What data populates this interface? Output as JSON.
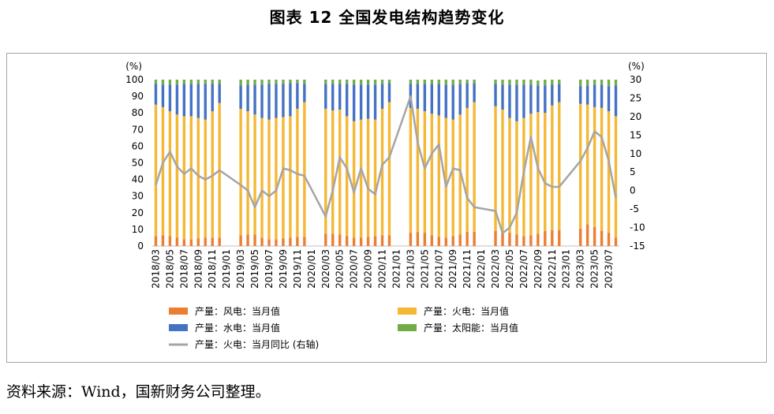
{
  "header": {
    "title": "图表 12 全国发电结构趋势变化"
  },
  "footer": {
    "source": "资料来源：Wind，国新财务公司整理。"
  },
  "chart_data": {
    "type": "bar",
    "stacked": true,
    "left_axis": {
      "unit": "(%)",
      "ylim": [
        0,
        100
      ],
      "ticks": [
        0,
        10,
        20,
        30,
        40,
        50,
        60,
        70,
        80,
        90,
        100
      ]
    },
    "right_axis": {
      "unit": "(%)",
      "ylim": [
        -15,
        30
      ],
      "ticks": [
        -15,
        -10,
        -5,
        0,
        5,
        10,
        15,
        20,
        25,
        30
      ]
    },
    "x_tick_labels": [
      "2018/03",
      "2018/05",
      "2018/07",
      "2018/09",
      "2018/11",
      "2019/01",
      "2019/03",
      "2019/05",
      "2019/07",
      "2019/09",
      "2019/11",
      "2020/01",
      "2020/03",
      "2020/05",
      "2020/07",
      "2020/09",
      "2020/11",
      "2021/01",
      "2021/03",
      "2021/05",
      "2021/07",
      "2021/09",
      "2021/11",
      "2022/01",
      "2022/03",
      "2022/05",
      "2022/07",
      "2022/09",
      "2022/11",
      "2023/01",
      "2023/03",
      "2023/05",
      "2023/07"
    ],
    "months": [
      "2018/03",
      "2018/04",
      "2018/05",
      "2018/06",
      "2018/07",
      "2018/08",
      "2018/09",
      "2018/10",
      "2018/11",
      "2018/12",
      "2019/01",
      "2019/02",
      "2019/03",
      "2019/04",
      "2019/05",
      "2019/06",
      "2019/07",
      "2019/08",
      "2019/09",
      "2019/10",
      "2019/11",
      "2019/12",
      "2020/01",
      "2020/02",
      "2020/03",
      "2020/04",
      "2020/05",
      "2020/06",
      "2020/07",
      "2020/08",
      "2020/09",
      "2020/10",
      "2020/11",
      "2020/12",
      "2021/01",
      "2021/02",
      "2021/03",
      "2021/04",
      "2021/05",
      "2021/06",
      "2021/07",
      "2021/08",
      "2021/09",
      "2021/10",
      "2021/11",
      "2021/12",
      "2022/01",
      "2022/02",
      "2022/03",
      "2022/04",
      "2022/05",
      "2022/06",
      "2022/07",
      "2022/08",
      "2022/09",
      "2022/10",
      "2022/11",
      "2022/12",
      "2023/01",
      "2023/02",
      "2023/03",
      "2023/04",
      "2023/05",
      "2023/06",
      "2023/07",
      "2023/08"
    ],
    "series": [
      {
        "name": "产量：风电：当月值",
        "color": "#ed7d31",
        "type": "bar",
        "values": [
          6,
          6.5,
          6,
          5,
          4,
          4,
          4.5,
          5,
          5,
          5,
          null,
          null,
          6.5,
          7,
          7,
          5,
          4,
          4,
          4.5,
          5,
          5.5,
          5.5,
          null,
          null,
          7.5,
          7.5,
          7,
          6,
          5,
          5,
          5.5,
          6,
          6.5,
          6.5,
          null,
          null,
          8,
          8.5,
          8,
          6.5,
          5.5,
          5,
          6,
          7,
          8.5,
          8.5,
          null,
          null,
          9,
          9,
          8,
          7,
          6,
          6.5,
          7.5,
          9,
          9.5,
          9.5,
          null,
          null,
          10.5,
          13,
          11.5,
          9,
          8,
          5
        ]
      },
      {
        "name": "产量：火电：当月值",
        "color": "#f4b835",
        "type": "bar",
        "values": [
          79,
          77,
          75,
          74,
          74,
          74,
          72.5,
          71,
          76,
          81,
          null,
          null,
          76,
          74,
          72,
          72,
          72,
          73,
          73,
          73,
          77,
          81,
          null,
          null,
          75,
          74,
          75,
          72,
          70,
          71,
          71,
          70,
          76,
          80,
          null,
          null,
          75,
          74,
          73,
          73,
          73,
          72,
          70,
          72,
          74.5,
          78,
          null,
          null,
          75,
          73,
          69,
          68,
          71,
          73,
          73,
          71,
          75,
          77,
          null,
          null,
          75,
          72,
          72,
          74,
          73,
          73
        ]
      },
      {
        "name": "产量：水电：当月值",
        "color": "#4472c4",
        "type": "bar",
        "values": [
          12.5,
          13.5,
          16,
          18,
          19.5,
          19.5,
          20.5,
          21.5,
          16.5,
          11.5,
          null,
          null,
          14,
          16,
          18,
          20,
          21.5,
          20.5,
          20,
          20,
          15.5,
          11,
          null,
          null,
          15,
          16,
          15.5,
          19.5,
          22,
          21,
          20.5,
          21,
          15,
          11.5,
          null,
          null,
          14.5,
          15,
          16.5,
          18,
          19,
          20,
          21,
          18.5,
          15,
          11.5,
          null,
          null,
          13.5,
          15,
          20,
          22,
          20,
          17.5,
          16,
          16.5,
          12.5,
          11,
          null,
          null,
          10.5,
          11.5,
          13.5,
          14,
          15,
          18.5
        ]
      },
      {
        "name": "产量：太阳能：当月值",
        "color": "#70ad47",
        "type": "bar",
        "values": [
          2.5,
          3,
          3,
          3,
          2.5,
          2.5,
          2.5,
          2.5,
          2.5,
          2.5,
          null,
          null,
          3.5,
          3,
          3,
          3,
          2.5,
          2.5,
          2.5,
          2,
          2,
          2.5,
          null,
          null,
          2.5,
          2.5,
          2.5,
          2.5,
          3,
          3,
          3,
          3,
          2.5,
          2,
          null,
          null,
          2.5,
          2.5,
          2.5,
          2.5,
          2.5,
          3,
          3,
          2.5,
          2,
          2,
          null,
          null,
          2.5,
          3,
          3,
          3,
          3,
          3,
          3,
          3.5,
          3,
          2.5,
          null,
          null,
          4,
          3.5,
          3,
          3,
          4,
          3.5
        ]
      },
      {
        "name": "产量：火电：当月同比 (右轴)",
        "color": "#a5a5a5",
        "type": "line",
        "axis": "right",
        "values": [
          1.5,
          7.5,
          10.5,
          6.5,
          4.5,
          6,
          4,
          3,
          4,
          5.5,
          null,
          null,
          1.5,
          0,
          -4.5,
          0,
          -1.5,
          0,
          6,
          5.5,
          4.5,
          4,
          null,
          null,
          -7,
          0,
          9,
          6,
          -0.5,
          6,
          0.5,
          -1,
          7,
          9,
          null,
          null,
          25.5,
          13,
          6,
          10,
          12.5,
          1,
          6,
          5.5,
          -2,
          -4.5,
          null,
          null,
          -5.5,
          -11.5,
          -10,
          -6,
          5,
          14.5,
          6,
          2,
          1,
          1,
          null,
          null,
          8,
          11.5,
          16,
          14.5,
          8,
          -2
        ]
      }
    ]
  }
}
